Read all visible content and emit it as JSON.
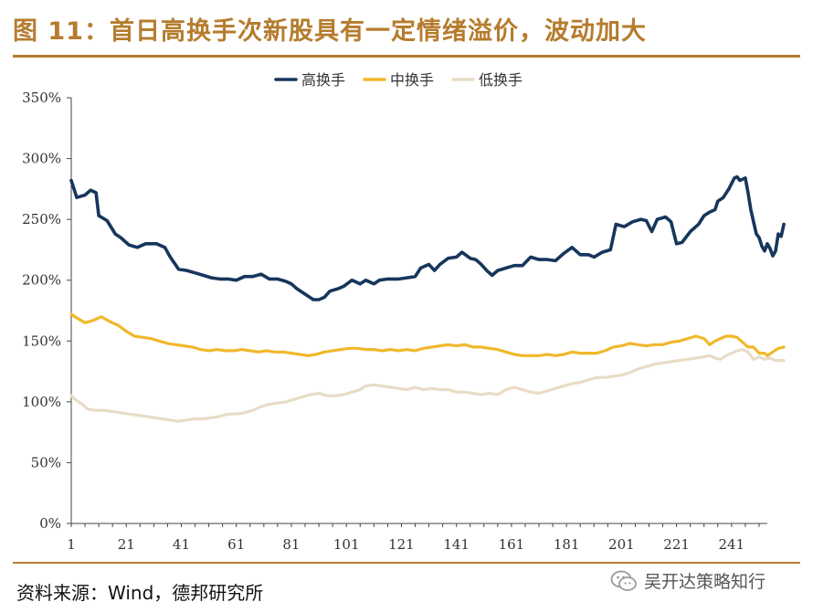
{
  "figure": {
    "title": "图 11：首日高换手次新股具有一定情绪溢价，波动加大",
    "source": "资料来源：Wind，德邦研究所",
    "watermark": "吴开达策略知行",
    "accent_color": "#b57c2e"
  },
  "chart_data": {
    "type": "line",
    "title": "",
    "xlabel": "",
    "ylabel": "",
    "x_range": [
      1,
      254
    ],
    "x_ticks": [
      1,
      21,
      41,
      61,
      81,
      101,
      121,
      141,
      161,
      181,
      201,
      221,
      241
    ],
    "ylim": [
      0,
      350
    ],
    "y_ticks": [
      0,
      50,
      100,
      150,
      200,
      250,
      300,
      350
    ],
    "y_tick_labels": [
      "0%",
      "50%",
      "100%",
      "150%",
      "200%",
      "250%",
      "300%",
      "350%"
    ],
    "legend_position": "top-center",
    "grid": false,
    "series": [
      {
        "name": "高换手",
        "color": "#16365c",
        "points": [
          [
            1,
            282
          ],
          [
            3,
            268
          ],
          [
            6,
            270
          ],
          [
            8,
            274
          ],
          [
            10,
            272
          ],
          [
            11,
            253
          ],
          [
            14,
            249
          ],
          [
            17,
            238
          ],
          [
            19,
            235
          ],
          [
            22,
            229
          ],
          [
            25,
            227
          ],
          [
            28,
            230
          ],
          [
            32,
            230
          ],
          [
            35,
            227
          ],
          [
            37,
            219
          ],
          [
            40,
            209
          ],
          [
            43,
            208
          ],
          [
            46,
            206
          ],
          [
            49,
            204
          ],
          [
            52,
            202
          ],
          [
            55,
            201
          ],
          [
            58,
            201
          ],
          [
            61,
            200
          ],
          [
            64,
            203
          ],
          [
            67,
            203
          ],
          [
            70,
            205
          ],
          [
            73,
            201
          ],
          [
            76,
            201
          ],
          [
            79,
            199
          ],
          [
            81,
            197
          ],
          [
            83,
            193
          ],
          [
            85,
            190
          ],
          [
            87,
            187
          ],
          [
            89,
            184
          ],
          [
            91,
            184
          ],
          [
            93,
            186
          ],
          [
            95,
            191
          ],
          [
            98,
            193
          ],
          [
            100,
            195
          ],
          [
            103,
            200
          ],
          [
            106,
            197
          ],
          [
            108,
            200
          ],
          [
            111,
            197
          ],
          [
            113,
            200
          ],
          [
            116,
            201
          ],
          [
            118,
            201
          ],
          [
            120,
            201
          ],
          [
            123,
            202
          ],
          [
            126,
            203
          ],
          [
            128,
            210
          ],
          [
            131,
            213
          ],
          [
            133,
            208
          ],
          [
            135,
            213
          ],
          [
            138,
            218
          ],
          [
            141,
            219
          ],
          [
            143,
            223
          ],
          [
            146,
            218
          ],
          [
            148,
            217
          ],
          [
            150,
            213
          ],
          [
            152,
            208
          ],
          [
            154,
            204
          ],
          [
            156,
            208
          ],
          [
            159,
            210
          ],
          [
            162,
            212
          ],
          [
            165,
            212
          ],
          [
            168,
            219
          ],
          [
            171,
            217
          ],
          [
            174,
            217
          ],
          [
            177,
            216
          ],
          [
            180,
            222
          ],
          [
            183,
            227
          ],
          [
            186,
            221
          ],
          [
            189,
            221
          ],
          [
            191,
            219
          ],
          [
            194,
            223
          ],
          [
            197,
            225
          ],
          [
            199,
            246
          ],
          [
            202,
            244
          ],
          [
            205,
            248
          ],
          [
            208,
            250
          ],
          [
            210,
            249
          ],
          [
            212,
            240
          ],
          [
            214,
            250
          ],
          [
            217,
            252
          ],
          [
            219,
            248
          ],
          [
            221,
            230
          ],
          [
            223,
            231
          ],
          [
            226,
            240
          ],
          [
            229,
            246
          ],
          [
            231,
            253
          ],
          [
            233,
            256
          ],
          [
            235,
            258
          ],
          [
            236,
            265
          ],
          [
            238,
            268
          ],
          [
            240,
            275
          ],
          [
            242,
            284
          ],
          [
            243,
            285
          ],
          [
            244,
            282
          ],
          [
            246,
            284
          ],
          [
            247,
            272
          ],
          [
            248,
            258
          ],
          [
            249,
            248
          ],
          [
            250,
            238
          ],
          [
            251,
            235
          ],
          [
            252,
            228
          ],
          [
            253,
            224
          ],
          [
            254,
            230
          ],
          [
            255,
            226
          ],
          [
            256,
            220
          ],
          [
            257,
            224
          ],
          [
            258,
            238
          ],
          [
            259,
            236
          ],
          [
            260,
            246
          ]
        ]
      },
      {
        "name": "中换手",
        "color": "#f0b82b",
        "points": [
          [
            1,
            172
          ],
          [
            3,
            169
          ],
          [
            6,
            165
          ],
          [
            9,
            167
          ],
          [
            12,
            170
          ],
          [
            15,
            166
          ],
          [
            18,
            163
          ],
          [
            21,
            158
          ],
          [
            24,
            154
          ],
          [
            27,
            153
          ],
          [
            30,
            152
          ],
          [
            33,
            150
          ],
          [
            36,
            148
          ],
          [
            39,
            147
          ],
          [
            42,
            146
          ],
          [
            45,
            145
          ],
          [
            48,
            143
          ],
          [
            51,
            142
          ],
          [
            54,
            143
          ],
          [
            57,
            142
          ],
          [
            60,
            142
          ],
          [
            63,
            143
          ],
          [
            66,
            142
          ],
          [
            69,
            141
          ],
          [
            72,
            142
          ],
          [
            75,
            141
          ],
          [
            78,
            141
          ],
          [
            81,
            140
          ],
          [
            84,
            139
          ],
          [
            87,
            138
          ],
          [
            90,
            139
          ],
          [
            93,
            141
          ],
          [
            96,
            142
          ],
          [
            99,
            143
          ],
          [
            102,
            144
          ],
          [
            105,
            144
          ],
          [
            108,
            143
          ],
          [
            111,
            143
          ],
          [
            114,
            142
          ],
          [
            117,
            143
          ],
          [
            120,
            142
          ],
          [
            123,
            143
          ],
          [
            126,
            142
          ],
          [
            129,
            144
          ],
          [
            132,
            145
          ],
          [
            135,
            146
          ],
          [
            138,
            147
          ],
          [
            141,
            146
          ],
          [
            144,
            147
          ],
          [
            147,
            145
          ],
          [
            150,
            145
          ],
          [
            153,
            144
          ],
          [
            156,
            143
          ],
          [
            159,
            141
          ],
          [
            162,
            139
          ],
          [
            165,
            138
          ],
          [
            168,
            138
          ],
          [
            171,
            138
          ],
          [
            174,
            139
          ],
          [
            177,
            138
          ],
          [
            180,
            139
          ],
          [
            183,
            141
          ],
          [
            186,
            140
          ],
          [
            189,
            140
          ],
          [
            192,
            140
          ],
          [
            195,
            142
          ],
          [
            198,
            145
          ],
          [
            201,
            146
          ],
          [
            204,
            148
          ],
          [
            207,
            147
          ],
          [
            210,
            146
          ],
          [
            213,
            147
          ],
          [
            216,
            147
          ],
          [
            219,
            149
          ],
          [
            222,
            150
          ],
          [
            225,
            152
          ],
          [
            228,
            154
          ],
          [
            231,
            152
          ],
          [
            233,
            147
          ],
          [
            235,
            150
          ],
          [
            237,
            152
          ],
          [
            239,
            154
          ],
          [
            241,
            154
          ],
          [
            243,
            153
          ],
          [
            245,
            149
          ],
          [
            247,
            145
          ],
          [
            249,
            145
          ],
          [
            251,
            140
          ],
          [
            253,
            140
          ],
          [
            254,
            138
          ],
          [
            256,
            141
          ],
          [
            258,
            144
          ],
          [
            260,
            145
          ]
        ]
      },
      {
        "name": "低换手",
        "color": "#e9dcc5",
        "points": [
          [
            1,
            105
          ],
          [
            3,
            101
          ],
          [
            5,
            98
          ],
          [
            7,
            94
          ],
          [
            10,
            93
          ],
          [
            13,
            93
          ],
          [
            16,
            92
          ],
          [
            19,
            91
          ],
          [
            22,
            90
          ],
          [
            25,
            89
          ],
          [
            28,
            88
          ],
          [
            31,
            87
          ],
          [
            34,
            86
          ],
          [
            37,
            85
          ],
          [
            40,
            84
          ],
          [
            43,
            85
          ],
          [
            46,
            86
          ],
          [
            49,
            86
          ],
          [
            52,
            87
          ],
          [
            55,
            88
          ],
          [
            58,
            90
          ],
          [
            61,
            90
          ],
          [
            64,
            91
          ],
          [
            67,
            93
          ],
          [
            70,
            96
          ],
          [
            73,
            98
          ],
          [
            76,
            99
          ],
          [
            79,
            100
          ],
          [
            82,
            102
          ],
          [
            85,
            104
          ],
          [
            88,
            106
          ],
          [
            91,
            107
          ],
          [
            94,
            105
          ],
          [
            97,
            105
          ],
          [
            100,
            106
          ],
          [
            103,
            108
          ],
          [
            106,
            110
          ],
          [
            108,
            113
          ],
          [
            111,
            114
          ],
          [
            114,
            113
          ],
          [
            117,
            112
          ],
          [
            120,
            111
          ],
          [
            123,
            110
          ],
          [
            126,
            112
          ],
          [
            129,
            110
          ],
          [
            132,
            111
          ],
          [
            135,
            110
          ],
          [
            138,
            110
          ],
          [
            141,
            108
          ],
          [
            144,
            108
          ],
          [
            147,
            107
          ],
          [
            150,
            106
          ],
          [
            153,
            107
          ],
          [
            156,
            106
          ],
          [
            159,
            110
          ],
          [
            162,
            112
          ],
          [
            165,
            110
          ],
          [
            168,
            108
          ],
          [
            171,
            107
          ],
          [
            174,
            109
          ],
          [
            177,
            111
          ],
          [
            180,
            113
          ],
          [
            183,
            115
          ],
          [
            186,
            116
          ],
          [
            189,
            118
          ],
          [
            192,
            120
          ],
          [
            195,
            120
          ],
          [
            198,
            121
          ],
          [
            201,
            122
          ],
          [
            204,
            124
          ],
          [
            207,
            127
          ],
          [
            210,
            129
          ],
          [
            213,
            131
          ],
          [
            216,
            132
          ],
          [
            219,
            133
          ],
          [
            222,
            134
          ],
          [
            225,
            135
          ],
          [
            228,
            136
          ],
          [
            231,
            137
          ],
          [
            233,
            138
          ],
          [
            235,
            136
          ],
          [
            237,
            135
          ],
          [
            239,
            138
          ],
          [
            241,
            140
          ],
          [
            243,
            142
          ],
          [
            245,
            143
          ],
          [
            247,
            141
          ],
          [
            248,
            138
          ],
          [
            249,
            135
          ],
          [
            251,
            137
          ],
          [
            253,
            135
          ],
          [
            255,
            136
          ],
          [
            257,
            134
          ],
          [
            260,
            134
          ]
        ]
      }
    ]
  }
}
